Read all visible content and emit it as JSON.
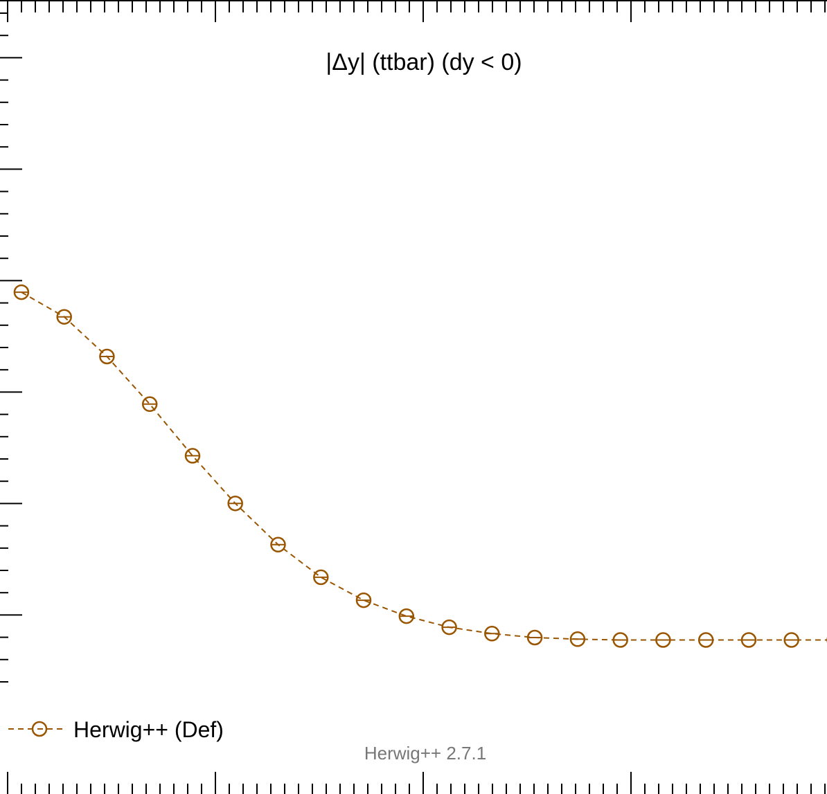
{
  "chart_data": {
    "type": "line",
    "title": "|Δy| (ttbar) (dy < 0)",
    "xlabel": "",
    "ylabel": "",
    "xlim": [
      0.0,
      19.33
    ],
    "ylim": [
      0.0,
      1.0
    ],
    "grid": false,
    "legend_position": "bottom-left",
    "series": [
      {
        "name": "Herwig++ (Def)",
        "color": "#995500",
        "marker": "open-circle",
        "linestyle": "dashed",
        "x": [
          0.5,
          1.5,
          2.5,
          3.5,
          4.5,
          5.5,
          6.5,
          7.5,
          8.5,
          9.5,
          10.5,
          11.5,
          12.5,
          13.5,
          14.5,
          15.5,
          16.5,
          17.5,
          18.5,
          19.5
        ],
        "y": [
          0.632,
          0.601,
          0.551,
          0.491,
          0.426,
          0.366,
          0.314,
          0.273,
          0.244,
          0.224,
          0.21,
          0.202,
          0.197,
          0.195,
          0.194,
          0.194,
          0.194,
          0.194,
          0.194,
          0.194
        ]
      }
    ]
  },
  "annotation": "Herwig++ 2.7.1",
  "colors": {
    "series": "#995500",
    "axis": "#000000",
    "annotation": "#777777"
  }
}
